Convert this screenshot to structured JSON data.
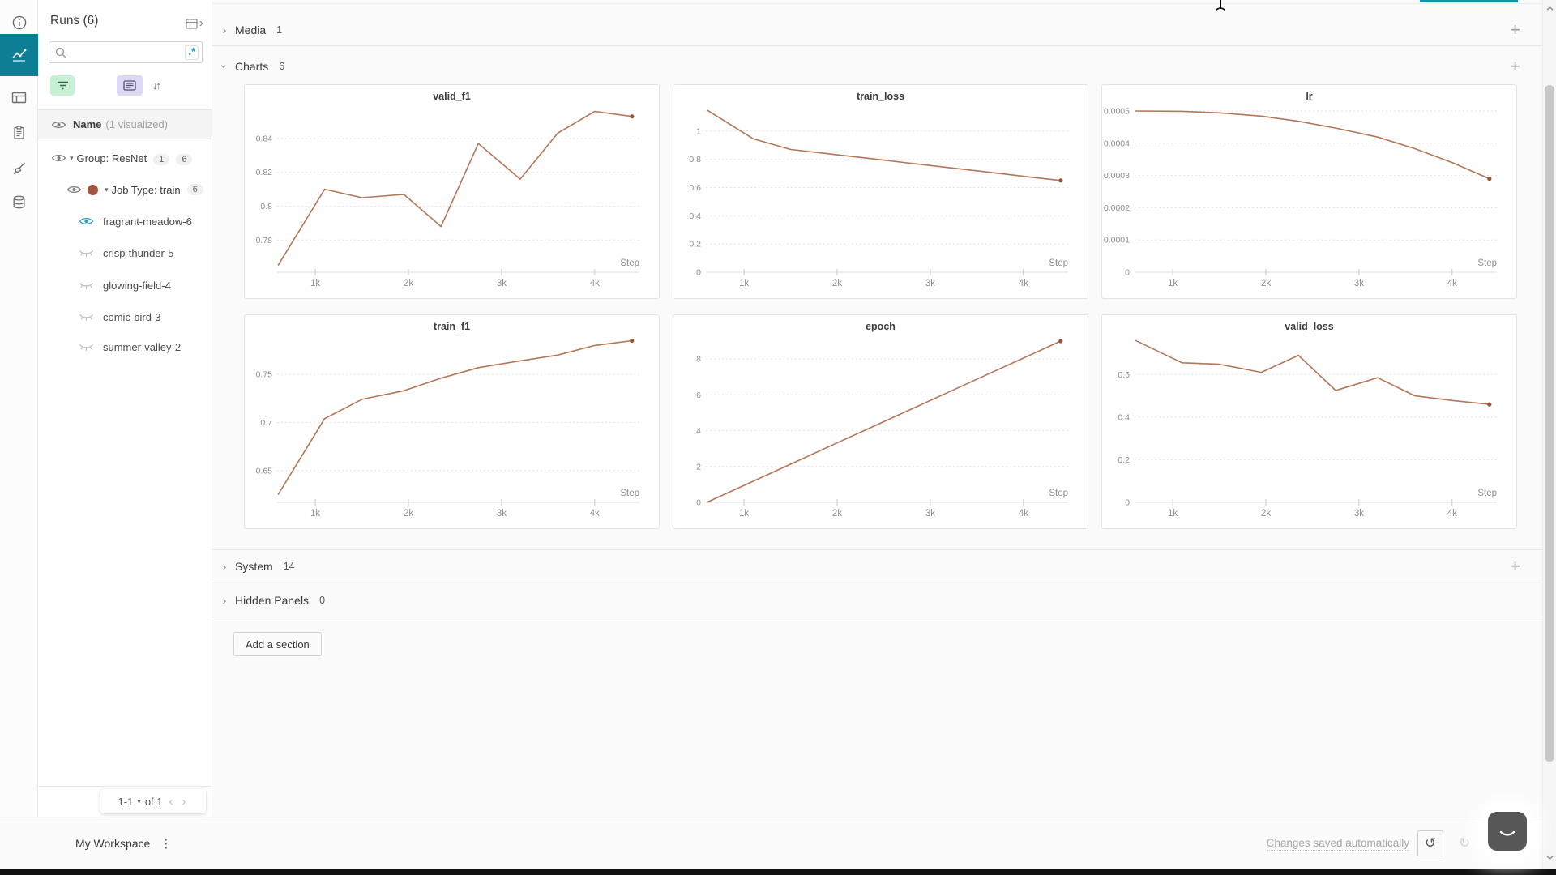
{
  "icons": {
    "chevron_right": "›",
    "caret_down": "▾",
    "plus": "+",
    "kebab": "⋮",
    "undo": "↺",
    "redo": "↻",
    "regex": ".*",
    "sort": "↓↑",
    "prev": "‹",
    "next": "›"
  },
  "icon_rail": {
    "items": [
      "info",
      "workspace-line-chart",
      "table-panels",
      "logs-clipboard",
      "sweeps-broom",
      "artifacts-database"
    ],
    "selected": "workspace-line-chart"
  },
  "runs_panel": {
    "title": "Runs (6)",
    "search_placeholder": "",
    "name_header": "Name",
    "visualized_note": "(1 visualized)",
    "group": {
      "label": "Group: ResNet",
      "badges": [
        "1",
        "6"
      ]
    },
    "job_type": {
      "label": "Job Type: train",
      "badge": "6",
      "color": "#a25540"
    },
    "runs": [
      {
        "name": "fragrant-meadow-6",
        "visualized": true
      },
      {
        "name": "crisp-thunder-5",
        "visualized": false
      },
      {
        "name": "glowing-field-4",
        "visualized": false
      },
      {
        "name": "comic-bird-3",
        "visualized": false
      },
      {
        "name": "summer-valley-2",
        "visualized": false
      }
    ],
    "pagination": {
      "range": "1-1",
      "of": "of 1"
    }
  },
  "sections": {
    "media": {
      "label": "Media",
      "count": "1",
      "collapsed": true
    },
    "charts": {
      "label": "Charts",
      "count": "6",
      "collapsed": false
    },
    "system": {
      "label": "System",
      "count": "14",
      "collapsed": true
    },
    "hidden": {
      "label": "Hidden Panels",
      "count": "0",
      "collapsed": true
    },
    "add_section_label": "Add a section"
  },
  "footer": {
    "workspace": "My Workspace",
    "autosave": "Changes saved automatically"
  },
  "colors": {
    "accent_teal": "#0d7f94",
    "top_bar_teal": "#0f93a8",
    "line": "#b3765a",
    "end_dot": "#9d5034",
    "eye_active": "#2f9acc",
    "filter_green_bg": "#c6f1d4",
    "filter_purple_bg": "#ddd8f6"
  },
  "chart_data": [
    {
      "type": "line",
      "title": "valid_f1",
      "xlabel": "Step",
      "grid": true,
      "legend": "none",
      "series": [
        {
          "name": "fragrant-meadow-6",
          "color": "#b3765a"
        }
      ],
      "x": [
        600,
        1100,
        1500,
        1950,
        2350,
        2750,
        3200,
        3600,
        4000,
        4400
      ],
      "values": [
        0.765,
        0.81,
        0.805,
        0.807,
        0.788,
        0.837,
        0.816,
        0.843,
        0.856,
        0.853
      ],
      "xlim": [
        590,
        4480
      ],
      "ylim": [
        0.761,
        0.861
      ],
      "xticks": [
        {
          "v": 1000,
          "label": "1k"
        },
        {
          "v": 2000,
          "label": "2k"
        },
        {
          "v": 3000,
          "label": "3k"
        },
        {
          "v": 4000,
          "label": "4k"
        }
      ],
      "yticks": [
        {
          "v": 0.78,
          "label": "0.78"
        },
        {
          "v": 0.8,
          "label": "0.8"
        },
        {
          "v": 0.82,
          "label": "0.82"
        },
        {
          "v": 0.84,
          "label": "0.84"
        }
      ]
    },
    {
      "type": "line",
      "title": "train_loss",
      "xlabel": "Step",
      "grid": true,
      "legend": "none",
      "series": [
        {
          "name": "fragrant-meadow-6",
          "color": "#b3765a"
        }
      ],
      "x": [
        600,
        1100,
        1500,
        1950,
        2350,
        2750,
        3200,
        3600,
        4000,
        4400
      ],
      "values": [
        1.15,
        0.945,
        0.87,
        0.836,
        0.806,
        0.775,
        0.741,
        0.711,
        0.68,
        0.65
      ],
      "xlim": [
        590,
        4480
      ],
      "ylim": [
        0,
        1.2
      ],
      "xticks": [
        {
          "v": 1000,
          "label": "1k"
        },
        {
          "v": 2000,
          "label": "2k"
        },
        {
          "v": 3000,
          "label": "3k"
        },
        {
          "v": 4000,
          "label": "4k"
        }
      ],
      "yticks": [
        {
          "v": 0,
          "label": "0"
        },
        {
          "v": 0.2,
          "label": "0.2"
        },
        {
          "v": 0.4,
          "label": "0.4"
        },
        {
          "v": 0.6,
          "label": "0.6"
        },
        {
          "v": 0.8,
          "label": "0.8"
        },
        {
          "v": 1,
          "label": "1"
        }
      ]
    },
    {
      "type": "line",
      "title": "lr",
      "xlabel": "Step",
      "grid": true,
      "legend": "none",
      "series": [
        {
          "name": "fragrant-meadow-6",
          "color": "#b3765a"
        }
      ],
      "x": [
        600,
        1100,
        1500,
        1950,
        2350,
        2750,
        3200,
        3600,
        4000,
        4400
      ],
      "values": [
        0.0005,
        0.000499,
        0.000494,
        0.000484,
        0.000468,
        0.000447,
        0.000419,
        0.000383,
        0.00034,
        0.00029
      ],
      "xlim": [
        590,
        4480
      ],
      "ylim": [
        0,
        0.000525
      ],
      "xticks": [
        {
          "v": 1000,
          "label": "1k"
        },
        {
          "v": 2000,
          "label": "2k"
        },
        {
          "v": 3000,
          "label": "3k"
        },
        {
          "v": 4000,
          "label": "4k"
        }
      ],
      "yticks": [
        {
          "v": 0,
          "label": "0"
        },
        {
          "v": 0.0001,
          "label": "0.0001"
        },
        {
          "v": 0.0002,
          "label": "0.0002"
        },
        {
          "v": 0.0003,
          "label": "0.0003"
        },
        {
          "v": 0.0004,
          "label": "0.0004"
        },
        {
          "v": 0.0005,
          "label": "0.0005"
        }
      ]
    },
    {
      "type": "line",
      "title": "train_f1",
      "xlabel": "Step",
      "grid": true,
      "legend": "none",
      "series": [
        {
          "name": "fragrant-meadow-6",
          "color": "#b3765a"
        }
      ],
      "x": [
        600,
        1100,
        1500,
        1950,
        2350,
        2750,
        3200,
        3600,
        4000,
        4400
      ],
      "values": [
        0.625,
        0.704,
        0.724,
        0.733,
        0.746,
        0.757,
        0.764,
        0.77,
        0.78,
        0.785
      ],
      "xlim": [
        590,
        4480
      ],
      "ylim": [
        0.617,
        0.793
      ],
      "xticks": [
        {
          "v": 1000,
          "label": "1k"
        },
        {
          "v": 2000,
          "label": "2k"
        },
        {
          "v": 3000,
          "label": "3k"
        },
        {
          "v": 4000,
          "label": "4k"
        }
      ],
      "yticks": [
        {
          "v": 0.65,
          "label": "0.65"
        },
        {
          "v": 0.7,
          "label": "0.7"
        },
        {
          "v": 0.75,
          "label": "0.75"
        }
      ]
    },
    {
      "type": "line",
      "title": "epoch",
      "xlabel": "Step",
      "grid": true,
      "legend": "none",
      "series": [
        {
          "name": "fragrant-meadow-6",
          "color": "#b3765a"
        }
      ],
      "x": [
        600,
        1100,
        1500,
        1950,
        2350,
        2750,
        3200,
        3600,
        4000,
        4400
      ],
      "values": [
        0,
        1.18,
        2.13,
        3.2,
        4.14,
        5.09,
        6.16,
        7.11,
        8.05,
        9
      ],
      "xlim": [
        590,
        4480
      ],
      "ylim": [
        0,
        9.45
      ],
      "xticks": [
        {
          "v": 1000,
          "label": "1k"
        },
        {
          "v": 2000,
          "label": "2k"
        },
        {
          "v": 3000,
          "label": "3k"
        },
        {
          "v": 4000,
          "label": "4k"
        }
      ],
      "yticks": [
        {
          "v": 0,
          "label": "0"
        },
        {
          "v": 2,
          "label": "2"
        },
        {
          "v": 4,
          "label": "4"
        },
        {
          "v": 6,
          "label": "6"
        },
        {
          "v": 8,
          "label": "8"
        }
      ]
    },
    {
      "type": "line",
      "title": "valid_loss",
      "xlabel": "Step",
      "grid": true,
      "legend": "none",
      "series": [
        {
          "name": "fragrant-meadow-6",
          "color": "#b3765a"
        }
      ],
      "x": [
        600,
        1100,
        1500,
        1950,
        2350,
        2750,
        3200,
        3600,
        4000,
        4400
      ],
      "values": [
        0.76,
        0.655,
        0.648,
        0.61,
        0.69,
        0.525,
        0.585,
        0.5,
        0.478,
        0.46
      ],
      "xlim": [
        590,
        4480
      ],
      "ylim": [
        0,
        0.795
      ],
      "xticks": [
        {
          "v": 1000,
          "label": "1k"
        },
        {
          "v": 2000,
          "label": "2k"
        },
        {
          "v": 3000,
          "label": "3k"
        },
        {
          "v": 4000,
          "label": "4k"
        }
      ],
      "yticks": [
        {
          "v": 0,
          "label": "0"
        },
        {
          "v": 0.2,
          "label": "0.2"
        },
        {
          "v": 0.4,
          "label": "0.4"
        },
        {
          "v": 0.6,
          "label": "0.6"
        }
      ]
    }
  ]
}
